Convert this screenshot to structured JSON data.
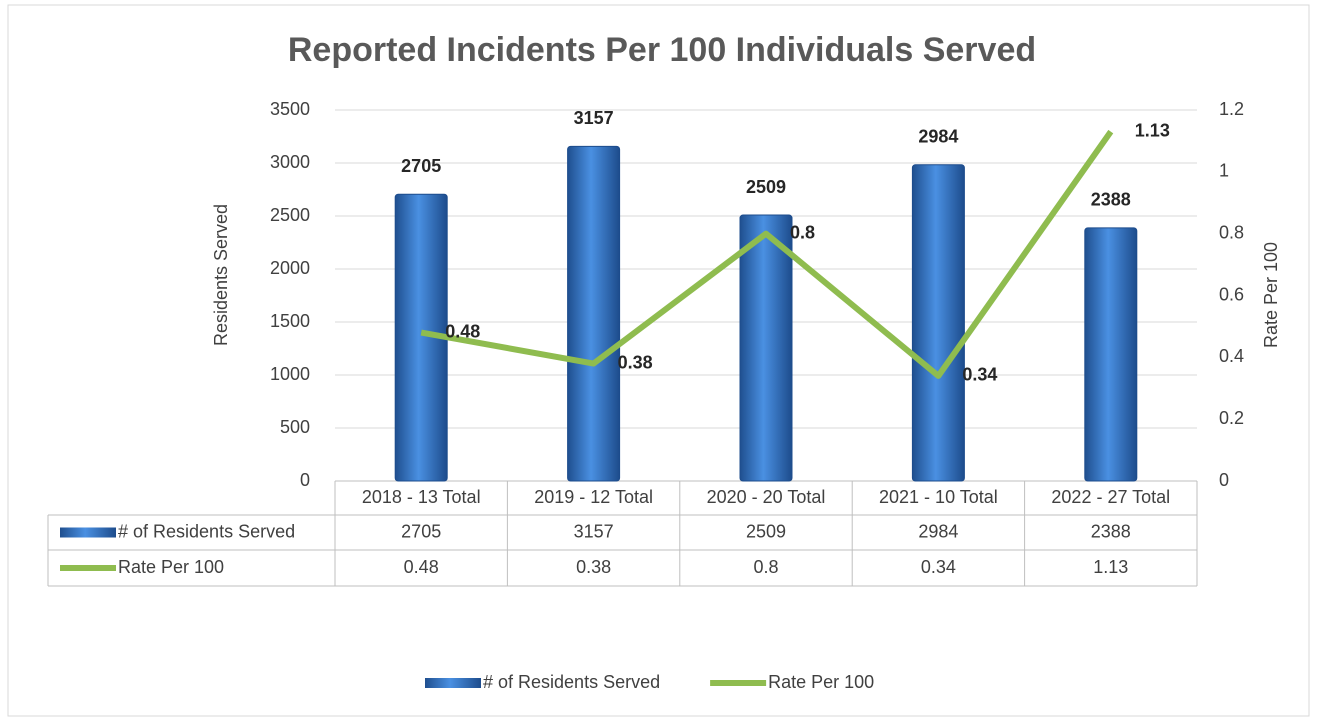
{
  "chart_data": {
    "type": "bar",
    "title": "Reported Incidents Per 100 Individuals Served",
    "categories": [
      "2018 - 13 Total",
      "2019 - 12 Total",
      "2020 - 20 Total",
      "2021 - 10 Total",
      "2022 - 27 Total"
    ],
    "series": [
      {
        "name": "# of Residents Served",
        "type": "bar",
        "color": "#2f74c9",
        "values": [
          2705,
          3157,
          2509,
          2984,
          2388
        ]
      },
      {
        "name": "Rate Per 100",
        "type": "line",
        "axis": "y2",
        "color": "#8fbc4f",
        "values": [
          0.48,
          0.38,
          0.8,
          0.34,
          1.13
        ]
      }
    ],
    "ylabel": "Residents Served",
    "y2label": "Rate Per 100",
    "ylim": [
      0,
      3500
    ],
    "yticks": [
      0,
      500,
      1000,
      1500,
      2000,
      2500,
      3000,
      3500
    ],
    "y2lim": [
      0,
      1.2
    ],
    "y2ticks": [
      0,
      0.2,
      0.4,
      0.6,
      0.8,
      1,
      1.2
    ],
    "grid": true,
    "legend": "bottom",
    "data_table": true
  }
}
